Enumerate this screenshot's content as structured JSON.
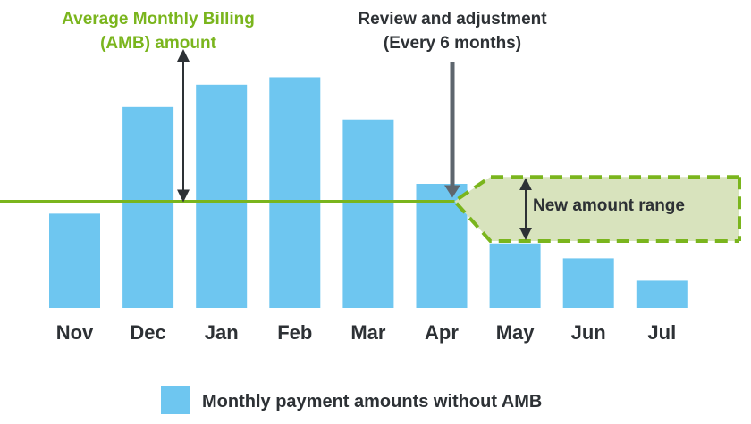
{
  "colors": {
    "bar": "#6ec6f0",
    "amb_line": "#7ab51d",
    "range_fill": "#d8e3bd",
    "range_border": "#7ab51d",
    "text_dark": "#2d3135",
    "arrow_gray": "#5e666e"
  },
  "annotations": {
    "amb_title_line1": "Average Monthly Billing",
    "amb_title_line2": "(AMB) amount",
    "review_line1": "Review and adjustment",
    "review_line2": "(Every 6 months)",
    "range_label": "New amount range"
  },
  "legend": {
    "label": "Monthly payment amounts without AMB"
  },
  "chart_data": {
    "type": "bar",
    "categories": [
      "Nov",
      "Dec",
      "Jan",
      "Feb",
      "Mar",
      "Apr",
      "May",
      "Jun",
      "Jul"
    ],
    "series": [
      {
        "name": "Monthly payment amounts without AMB",
        "values": [
          38,
          81,
          90,
          93,
          76,
          50,
          26,
          20,
          11
        ]
      }
    ],
    "ylim": [
      0,
      100
    ],
    "amb_level": 43,
    "new_range": [
      27,
      60
    ],
    "review_after": "Apr",
    "grid": false,
    "legend_position": "bottom-center",
    "xlabel": "",
    "ylabel": ""
  }
}
